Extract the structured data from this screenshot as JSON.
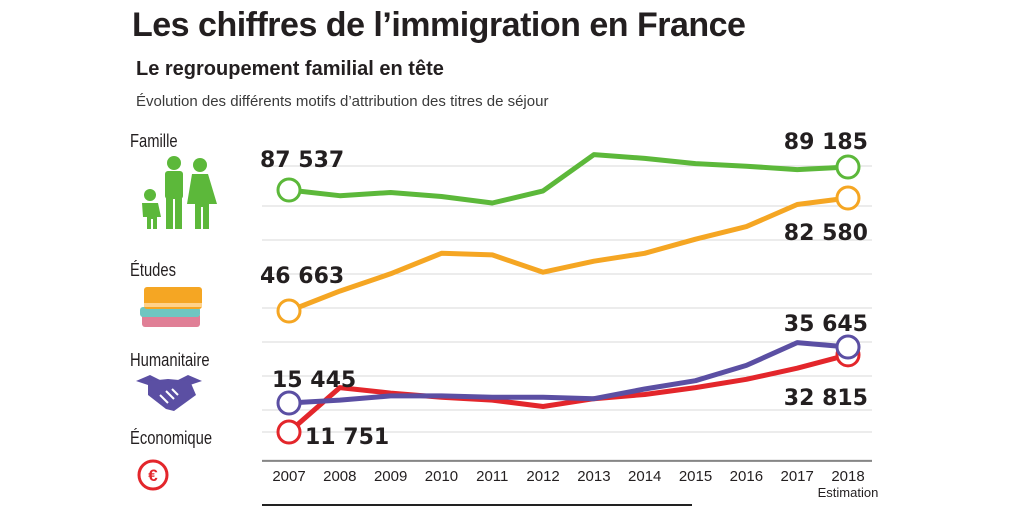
{
  "header": {
    "title": "Les chiffres de l’immigration en France",
    "subtitle": "Le regroupement familial en tête",
    "description": "Évolution des différents motifs d’attribution des titres de séjour"
  },
  "categories_panel": {
    "famille": "Famille",
    "etudes": "Études",
    "humanitaire": "Humanitaire",
    "economique": "Économique"
  },
  "colors": {
    "famille": "#5cb83a",
    "etudes": "#f5a623",
    "humanitaire": "#5b4fa3",
    "economique": "#e3262b",
    "euro": "#e3262b"
  },
  "icons": [
    "family-icon",
    "books-icon",
    "handshake-icon",
    "euro-icon"
  ],
  "chart_data": {
    "type": "line",
    "title": "Les chiffres de l’immigration en France",
    "x": [
      "2007",
      "2008",
      "2009",
      "2010",
      "2011",
      "2012",
      "2013",
      "2014",
      "2015",
      "2016",
      "2017",
      "2018"
    ],
    "x_note": "Estimation",
    "ylim": [
      0,
      100000
    ],
    "series": [
      {
        "name": "Famille",
        "values": [
          87537,
          84000,
          86000,
          83500,
          81000,
          87000,
          94000,
          92500,
          90500,
          89500,
          89000,
          89185
        ]
      },
      {
        "name": "Études",
        "values": [
          46663,
          53000,
          58500,
          65000,
          64500,
          59000,
          62500,
          65000,
          69500,
          73500,
          80500,
          82580
        ]
      },
      {
        "name": "Humanitaire",
        "values": [
          15445,
          16500,
          18000,
          18000,
          17500,
          17500,
          17000,
          20500,
          23500,
          29000,
          37000,
          35645
        ]
      },
      {
        "name": "Économique",
        "values": [
          11751,
          21000,
          19000,
          17500,
          16500,
          15000,
          17000,
          18500,
          21000,
          24000,
          28000,
          32815
        ]
      }
    ],
    "data_labels": {
      "famille_start": "87 537",
      "famille_end": "89 185",
      "etudes_start": "46 663",
      "etudes_end": "82 580",
      "humanitaire_start": "15 445",
      "humanitaire_end": "35 645",
      "economique_start": "11 751",
      "economique_end": "32 815"
    }
  }
}
